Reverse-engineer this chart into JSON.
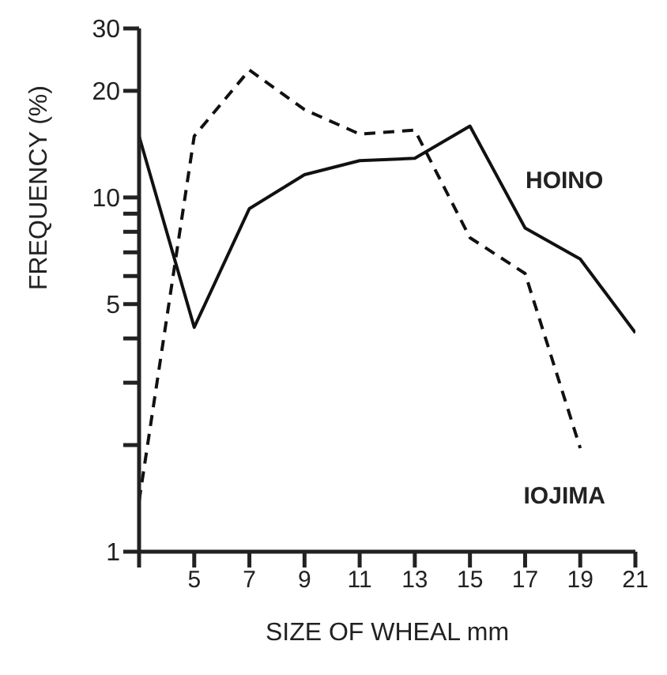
{
  "chart_data": {
    "type": "line",
    "xlabel": "SIZE OF WHEAL mm",
    "ylabel": "FREQUENCY (%)",
    "x": [
      3,
      5,
      7,
      9,
      11,
      13,
      15,
      17,
      19,
      21
    ],
    "series": [
      {
        "name": "HOINO",
        "color": "#111111",
        "line_style": "solid",
        "values": [
          14.9,
          4.3,
          9.3,
          11.6,
          12.7,
          12.9,
          15.9,
          8.2,
          6.7,
          4.15
        ]
      },
      {
        "name": "IOJIMA",
        "color": "#111111",
        "line_style": "dashed",
        "values": [
          1.39,
          14.9,
          22.9,
          17.7,
          15.1,
          15.5,
          7.7,
          6.1,
          1.96,
          null
        ]
      }
    ],
    "xlim": [
      3,
      21
    ],
    "xticks": [
      {
        "value": 3,
        "label": null
      },
      5,
      7,
      9,
      11,
      13,
      15,
      17,
      19,
      21
    ],
    "ylim": [
      1,
      30
    ],
    "yticks": [
      1,
      {
        "value": 2,
        "label": null
      },
      {
        "value": 3,
        "label": null
      },
      {
        "value": 4,
        "label": null
      },
      5,
      {
        "value": 6,
        "label": null
      },
      {
        "value": 7,
        "label": null
      },
      {
        "value": 8,
        "label": null
      },
      {
        "value": 9,
        "label": null
      },
      10,
      20,
      30
    ],
    "log": "y",
    "grid": false,
    "legend": false,
    "marker": "none"
  }
}
